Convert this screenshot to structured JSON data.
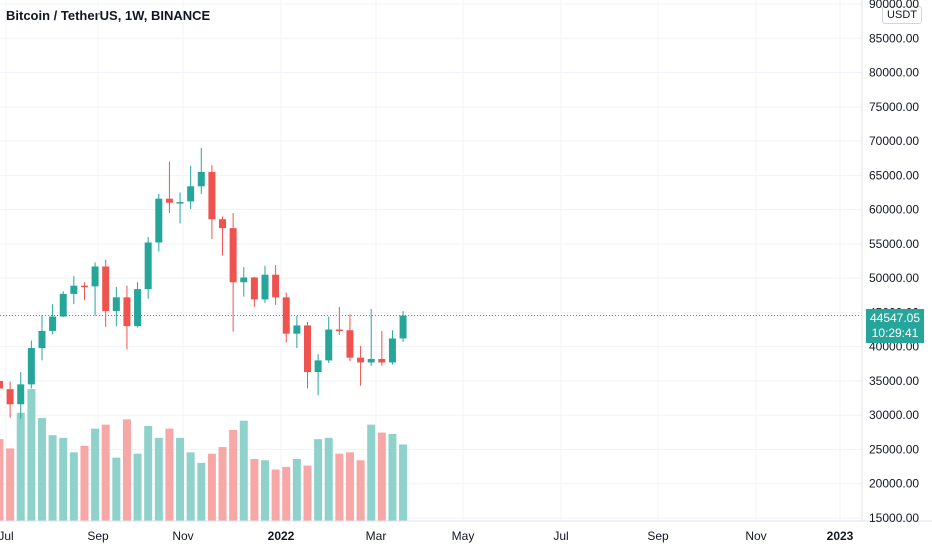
{
  "header": {
    "title": "Bitcoin / TetherUS, 1W, BINANCE",
    "currency": "USDT"
  },
  "last_price": {
    "value": "44547.05",
    "countdown": "10:29:41"
  },
  "colors": {
    "up": "#26a69a",
    "down": "#ef5350",
    "up_volume": "#8fd2cb",
    "down_volume": "#f6a7a6",
    "grid": "#f0f3fa",
    "last_price_line": "#26a69a"
  },
  "chart_data": {
    "type": "candlestick",
    "y_ticks": [
      "15000.00",
      "20000.00",
      "25000.00",
      "30000.00",
      "35000.00",
      "40000.00",
      "45000.00",
      "50000.00",
      "55000.00",
      "60000.00",
      "65000.00",
      "70000.00",
      "75000.00",
      "80000.00",
      "85000.00",
      "90000.00"
    ],
    "x_ticks": [
      "Jul",
      "Sep",
      "Nov",
      "2022",
      "Mar",
      "May",
      "Jul",
      "Sep",
      "Nov",
      "2023"
    ],
    "ylim": [
      15000,
      90000
    ],
    "candles": [
      {
        "o": 35000,
        "h": 35500,
        "l": 32200,
        "c": 33900
      },
      {
        "o": 33800,
        "h": 34900,
        "l": 29600,
        "c": 31600
      },
      {
        "o": 31600,
        "h": 36300,
        "l": 29500,
        "c": 34500
      },
      {
        "o": 34500,
        "h": 40900,
        "l": 33900,
        "c": 39800
      },
      {
        "o": 39800,
        "h": 44600,
        "l": 38000,
        "c": 42300
      },
      {
        "o": 42300,
        "h": 46200,
        "l": 41800,
        "c": 44400
      },
      {
        "o": 44400,
        "h": 48100,
        "l": 44300,
        "c": 47700
      },
      {
        "o": 47700,
        "h": 50300,
        "l": 46200,
        "c": 48900
      },
      {
        "o": 48900,
        "h": 49400,
        "l": 46800,
        "c": 48800
      },
      {
        "o": 48800,
        "h": 52300,
        "l": 44500,
        "c": 51700
      },
      {
        "o": 51700,
        "h": 52700,
        "l": 42900,
        "c": 45200
      },
      {
        "o": 45200,
        "h": 48700,
        "l": 43000,
        "c": 47200
      },
      {
        "o": 47200,
        "h": 48900,
        "l": 39600,
        "c": 43000
      },
      {
        "o": 43000,
        "h": 49400,
        "l": 42800,
        "c": 48400
      },
      {
        "o": 48400,
        "h": 56000,
        "l": 47000,
        "c": 55200
      },
      {
        "o": 55200,
        "h": 62300,
        "l": 53900,
        "c": 61600
      },
      {
        "o": 61600,
        "h": 67000,
        "l": 59500,
        "c": 61000
      },
      {
        "o": 61000,
        "h": 62500,
        "l": 58000,
        "c": 61100
      },
      {
        "o": 61200,
        "h": 66400,
        "l": 60100,
        "c": 63400
      },
      {
        "o": 63400,
        "h": 69000,
        "l": 62300,
        "c": 65500
      },
      {
        "o": 65500,
        "h": 66500,
        "l": 55700,
        "c": 58600
      },
      {
        "o": 58600,
        "h": 59000,
        "l": 53300,
        "c": 57300
      },
      {
        "o": 57300,
        "h": 59500,
        "l": 42200,
        "c": 49400
      },
      {
        "o": 49400,
        "h": 51600,
        "l": 47300,
        "c": 50100
      },
      {
        "o": 50100,
        "h": 50200,
        "l": 45800,
        "c": 46900
      },
      {
        "o": 46900,
        "h": 51800,
        "l": 46400,
        "c": 50500
      },
      {
        "o": 50500,
        "h": 51900,
        "l": 46100,
        "c": 47200
      },
      {
        "o": 47200,
        "h": 47900,
        "l": 40600,
        "c": 41900
      },
      {
        "o": 41900,
        "h": 44500,
        "l": 39800,
        "c": 43100
      },
      {
        "o": 43100,
        "h": 43600,
        "l": 33900,
        "c": 36300
      },
      {
        "o": 36300,
        "h": 38900,
        "l": 32900,
        "c": 38000
      },
      {
        "o": 38000,
        "h": 44400,
        "l": 37600,
        "c": 42500
      },
      {
        "o": 42500,
        "h": 45800,
        "l": 41700,
        "c": 42400
      },
      {
        "o": 42400,
        "h": 44700,
        "l": 37900,
        "c": 38400
      },
      {
        "o": 38400,
        "h": 40100,
        "l": 34300,
        "c": 37700
      },
      {
        "o": 37700,
        "h": 45500,
        "l": 37200,
        "c": 38200
      },
      {
        "o": 38200,
        "h": 42300,
        "l": 37200,
        "c": 37700
      },
      {
        "o": 37700,
        "h": 42400,
        "l": 37400,
        "c": 41200
      },
      {
        "o": 41200,
        "h": 45200,
        "l": 40700,
        "c": 44547.05
      }
    ],
    "volume_relative": [
      0.62,
      0.55,
      0.82,
      1.0,
      0.78,
      0.65,
      0.63,
      0.52,
      0.57,
      0.7,
      0.73,
      0.48,
      0.77,
      0.51,
      0.72,
      0.63,
      0.7,
      0.63,
      0.52,
      0.44,
      0.51,
      0.56,
      0.69,
      0.76,
      0.47,
      0.46,
      0.39,
      0.41,
      0.47,
      0.42,
      0.62,
      0.63,
      0.51,
      0.52,
      0.46,
      0.73,
      0.67,
      0.66,
      0.58
    ]
  }
}
